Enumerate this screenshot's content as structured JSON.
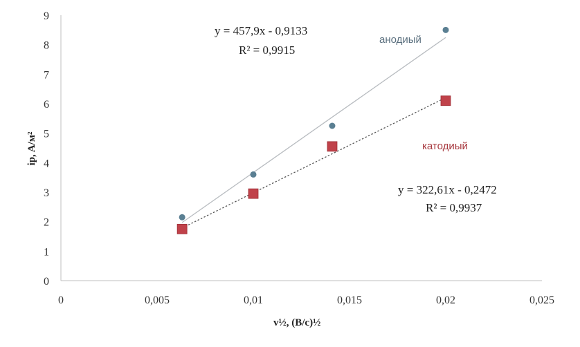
{
  "chart_data": {
    "type": "scatter",
    "xlabel": "v½, (B/c)½",
    "ylabel": "ip, A/м²",
    "xlim": [
      0,
      0.025
    ],
    "ylim": [
      0,
      9
    ],
    "x_ticks": [
      "0",
      "0,005",
      "0,01",
      "0,015",
      "0,02",
      "0,025"
    ],
    "y_ticks": [
      "0",
      "1",
      "2",
      "3",
      "4",
      "5",
      "6",
      "7",
      "8",
      "9"
    ],
    "grid": false,
    "series": [
      {
        "name": "анодиый",
        "marker": "circle",
        "color": "#5a7f92",
        "line_color": "#b8bcc0",
        "line_style": "solid",
        "x": [
          0.0063,
          0.01,
          0.0141,
          0.02
        ],
        "y": [
          2.15,
          3.6,
          5.25,
          8.5
        ],
        "trendline": {
          "slope": 457.9,
          "intercept": -0.9133
        },
        "equation": "y = 457,9x - 0,9133",
        "r2": "R² = 0,9915"
      },
      {
        "name": "катодиый",
        "marker": "square",
        "color": "#c0424a",
        "line_color": "#555555",
        "line_style": "dotted",
        "x": [
          0.0063,
          0.01,
          0.0141,
          0.02
        ],
        "y": [
          1.75,
          2.95,
          4.55,
          6.1
        ],
        "trendline": {
          "slope": 322.61,
          "intercept": -0.2472
        },
        "equation": "y = 322,61x - 0,2472",
        "r2": "R² = 0,9937"
      }
    ]
  }
}
